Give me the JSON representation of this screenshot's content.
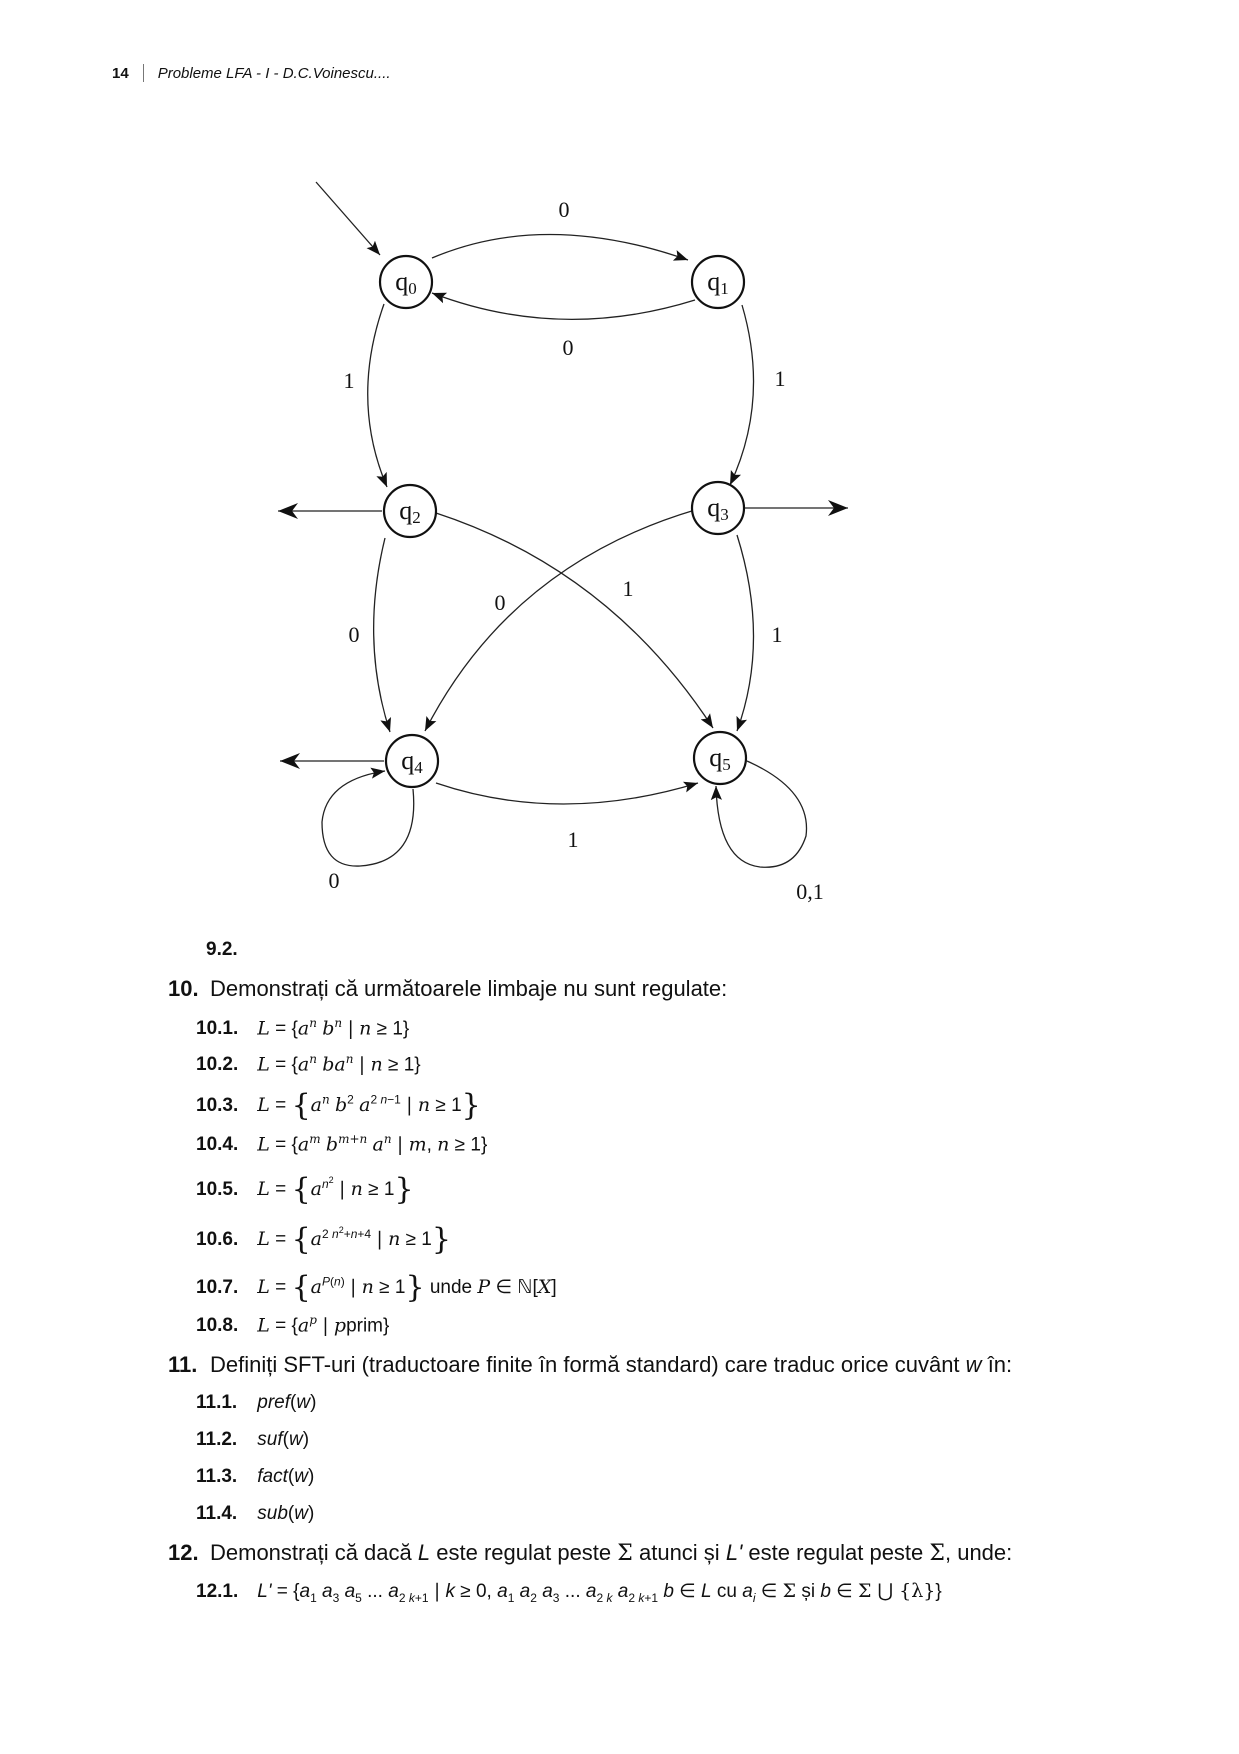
{
  "header": {
    "page_number": "14",
    "title": "Probleme LFA - I - D.C.Voinescu...."
  },
  "diagram": {
    "states": {
      "q0": "q",
      "q1": "q",
      "q2": "q",
      "q3": "q",
      "q4": "q",
      "q5": "q",
      "i0": "0",
      "i1": "1",
      "i2": "2",
      "i3": "3",
      "i4": "4",
      "i5": "5"
    },
    "edge_labels": {
      "q0_q1": "0",
      "q1_q0": "0",
      "q0_q2": "1",
      "q1_q3": "1",
      "q2_q4": "0",
      "q3_q4": "0",
      "q2_q5": "1",
      "q3_q5": "1",
      "q4_q4": "0",
      "q4_q5": "1",
      "q5_q5": "0,1"
    }
  },
  "items": {
    "n9_2": "9.2.",
    "n10": "10.",
    "t10": "Demonstrați că următoarele limbaje nu sunt regulate:",
    "n10_1": "10.1.",
    "n10_2": "10.2.",
    "n10_3": "10.3.",
    "n10_4": "10.4.",
    "n10_5": "10.5.",
    "n10_6": "10.6.",
    "n10_7": "10.7.",
    "n10_8": "10.8.",
    "n11": "11.",
    "t11": "Definiți SFT-uri (traductoare finite în formă standard) care traduc orice cuvânt",
    "t11_w": "w",
    "t11_end": "în:",
    "n11_1": "11.1.",
    "n11_2": "11.2.",
    "n11_3": "11.3.",
    "n11_4": "11.4.",
    "f11_1": "pref",
    "f11_2": "suf",
    "f11_3": "fact",
    "f11_4": "sub",
    "n12": "12.",
    "t12a": "Demonstrați că dacă",
    "t12b": "este regulat peste",
    "t12c": "atunci și",
    "t12d": "este regulat peste",
    "t12e": ", unde:",
    "n12_1": "12.1.",
    "w_unde": "unde",
    "w_prim": "prim",
    "w_cu": "cu",
    "w_si": "și"
  }
}
